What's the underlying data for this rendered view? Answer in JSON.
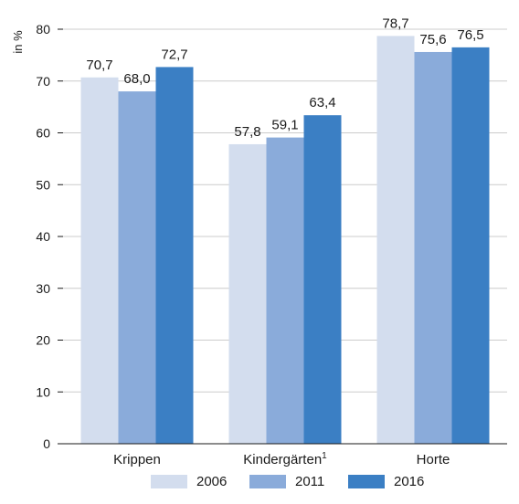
{
  "chart_data": {
    "type": "bar",
    "ylabel": "in %",
    "ylim": [
      0,
      80
    ],
    "yticks": [
      0,
      10,
      20,
      30,
      40,
      50,
      60,
      70,
      80
    ],
    "grid": true,
    "legend_position": "bottom",
    "categories": [
      {
        "label": "Krippen",
        "footnote": ""
      },
      {
        "label": "Kindergärten",
        "footnote": "1"
      },
      {
        "label": "Horte",
        "footnote": ""
      }
    ],
    "series": [
      {
        "name": "2006",
        "color": "#d3ddee",
        "values": [
          70.7,
          57.8,
          78.7
        ],
        "labels": [
          "70,7",
          "57,8",
          "78,7"
        ]
      },
      {
        "name": "2011",
        "color": "#8aabda",
        "values": [
          68.0,
          59.1,
          75.6
        ],
        "labels": [
          "68,0",
          "59,1",
          "75,6"
        ]
      },
      {
        "name": "2016",
        "color": "#3b7fc4",
        "values": [
          72.7,
          63.4,
          76.5
        ],
        "labels": [
          "72,7",
          "63,4",
          "76,5"
        ]
      }
    ]
  }
}
